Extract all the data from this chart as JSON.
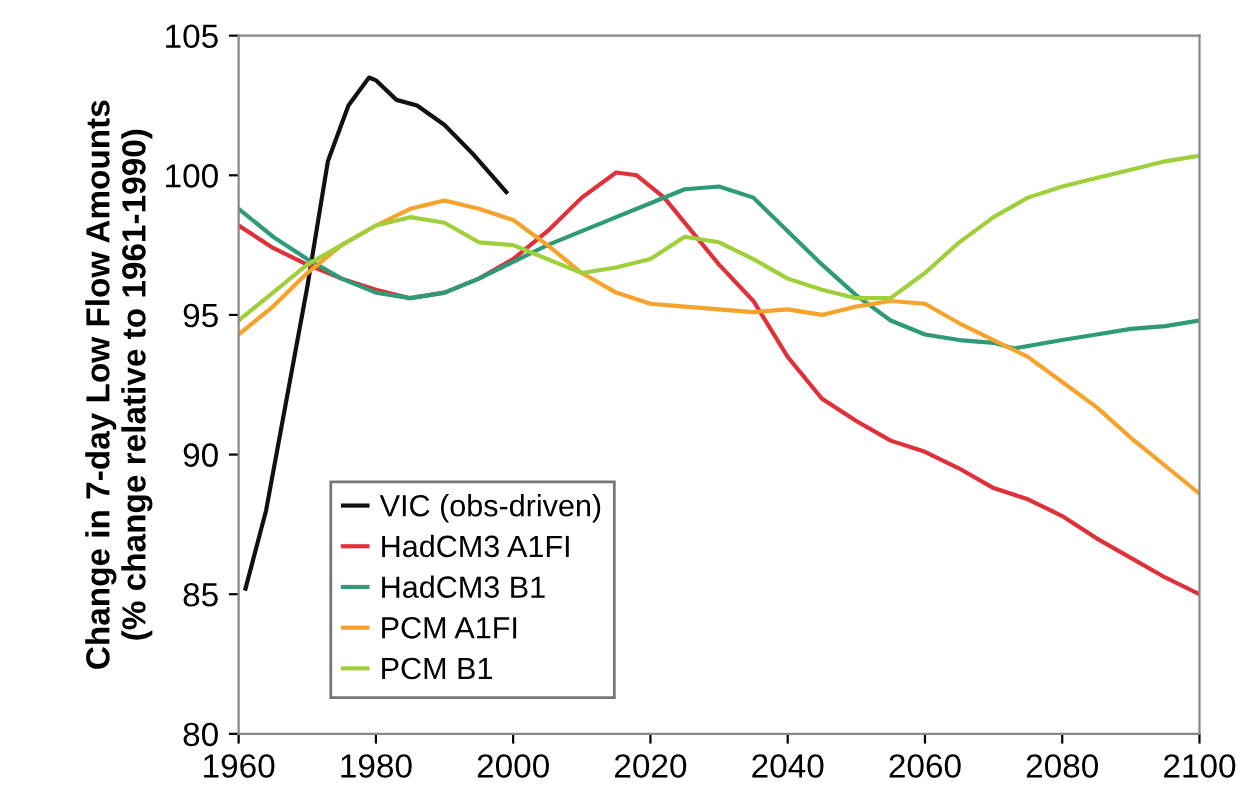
{
  "chart_data": {
    "type": "line",
    "ylabel": "Change in 7-day Low Flow Amounts\n(% change relative to 1961-1990)",
    "xlim": [
      1960,
      2100
    ],
    "xticks": [
      1960,
      1980,
      2000,
      2020,
      2040,
      2060,
      2080,
      2100
    ],
    "ylim": [
      80,
      105
    ],
    "yticks": [
      80,
      85,
      90,
      95,
      100,
      105
    ],
    "legend": "bottom left",
    "grid": false,
    "series": [
      {
        "name": "VIC (obs-driven)",
        "color": "#111111",
        "x": [
          1961,
          1964,
          1967,
          1970,
          1973,
          1976,
          1979,
          1980,
          1983,
          1986,
          1990,
          1994,
          1999
        ],
        "values": [
          85.2,
          88,
          92,
          96,
          100.5,
          102.5,
          103.5,
          103.4,
          102.7,
          102.5,
          101.8,
          100.8,
          99.4
        ]
      },
      {
        "name": "HadCM3 A1FI",
        "color": "#e0303a",
        "x": [
          1960,
          1965,
          1970,
          1975,
          1980,
          1985,
          1990,
          1995,
          2000,
          2005,
          2010,
          2015,
          2018,
          2022,
          2026,
          2030,
          2035,
          2040,
          2045,
          2050,
          2055,
          2060,
          2065,
          2070,
          2075,
          2080,
          2085,
          2090,
          2095,
          2100
        ],
        "values": [
          98.2,
          97.4,
          96.8,
          96.3,
          95.9,
          95.6,
          95.8,
          96.3,
          97.0,
          98.0,
          99.2,
          100.1,
          100.0,
          99.2,
          98.0,
          96.8,
          95.5,
          93.5,
          92.0,
          91.2,
          90.5,
          90.1,
          89.5,
          88.8,
          88.4,
          87.8,
          87.0,
          86.3,
          85.6,
          85.0
        ]
      },
      {
        "name": "HadCM3 B1",
        "color": "#2e9a78",
        "x": [
          1960,
          1965,
          1970,
          1975,
          1980,
          1985,
          1990,
          1995,
          2000,
          2005,
          2010,
          2015,
          2020,
          2025,
          2030,
          2035,
          2040,
          2045,
          2050,
          2055,
          2060,
          2065,
          2070,
          2073,
          2080,
          2085,
          2090,
          2095,
          2100
        ],
        "values": [
          98.8,
          97.8,
          97.0,
          96.3,
          95.8,
          95.6,
          95.8,
          96.3,
          96.9,
          97.5,
          98.0,
          98.5,
          99.0,
          99.5,
          99.6,
          99.2,
          98.0,
          96.8,
          95.7,
          94.8,
          94.3,
          94.1,
          94.0,
          93.8,
          94.1,
          94.3,
          94.5,
          94.6,
          94.8
        ]
      },
      {
        "name": "PCM A1FI",
        "color": "#f7a22a",
        "x": [
          1960,
          1965,
          1970,
          1975,
          1980,
          1985,
          1990,
          1995,
          2000,
          2005,
          2010,
          2015,
          2020,
          2025,
          2030,
          2035,
          2040,
          2045,
          2050,
          2055,
          2060,
          2065,
          2070,
          2075,
          2080,
          2085,
          2090,
          2095,
          2100
        ],
        "values": [
          94.3,
          95.3,
          96.5,
          97.5,
          98.2,
          98.8,
          99.1,
          98.8,
          98.4,
          97.5,
          96.5,
          95.8,
          95.4,
          95.3,
          95.2,
          95.1,
          95.2,
          95.0,
          95.3,
          95.5,
          95.4,
          94.7,
          94.1,
          93.5,
          92.6,
          91.7,
          90.6,
          89.6,
          88.6
        ]
      },
      {
        "name": "PCM B1",
        "color": "#9fcf3a",
        "x": [
          1960,
          1965,
          1970,
          1975,
          1980,
          1985,
          1990,
          1995,
          2000,
          2005,
          2010,
          2015,
          2020,
          2025,
          2030,
          2035,
          2040,
          2045,
          2050,
          2055,
          2060,
          2065,
          2070,
          2075,
          2080,
          2085,
          2090,
          2095,
          2100
        ],
        "values": [
          94.8,
          95.8,
          96.8,
          97.5,
          98.2,
          98.5,
          98.3,
          97.6,
          97.5,
          97.0,
          96.5,
          96.7,
          97.0,
          97.8,
          97.6,
          97.0,
          96.3,
          95.9,
          95.6,
          95.6,
          96.5,
          97.6,
          98.5,
          99.2,
          99.6,
          99.9,
          100.2,
          100.5,
          100.7
        ]
      }
    ]
  }
}
